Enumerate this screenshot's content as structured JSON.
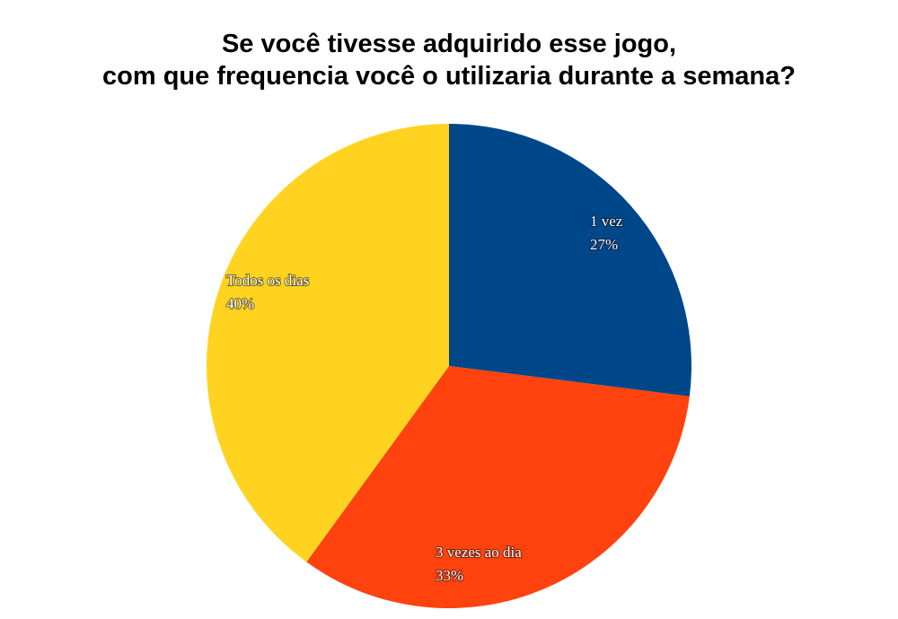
{
  "chart_data": {
    "type": "pie",
    "title": [
      "Se você tivesse adquirido esse jogo,",
      "com que frequencia você o utilizaria durante a semana?"
    ],
    "start_angle_deg": 0,
    "direction": "clockwise",
    "slices": [
      {
        "label": "1 vez",
        "value": 27,
        "value_label": "27%",
        "color": "#00478a"
      },
      {
        "label": "3 vezes ao dia",
        "value": 33,
        "value_label": "33%",
        "color": "#ff420e"
      },
      {
        "label": "Todos os dias",
        "value": 40,
        "value_label": "40%",
        "color": "#ffd320"
      }
    ],
    "legend": "none"
  }
}
